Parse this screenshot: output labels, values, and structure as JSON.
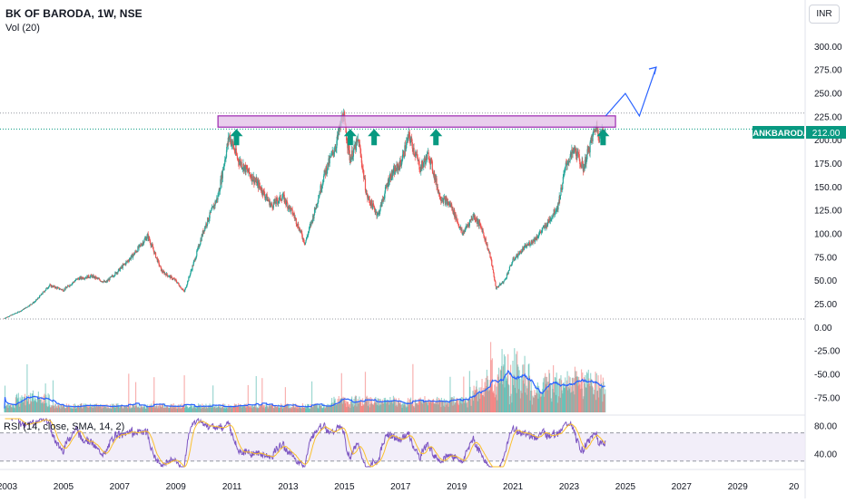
{
  "header": {
    "title": "BK OF BARODA, 1W, NSE",
    "volume_label": "Vol (20)",
    "currency": "INR"
  },
  "last_price": {
    "symbol": "BANKBARODA",
    "value": "212.00",
    "color": "#089981"
  },
  "rsi": {
    "label": "RSI (14, close, SMA, 14, 2)",
    "ticks": [
      "80.00",
      "40.00"
    ]
  },
  "colors": {
    "up": "#26a69a",
    "down": "#ef5350",
    "resistance_fill": "#e1bee7",
    "resistance_border": "#9c27b0",
    "arrow": "#089981",
    "projection": "#2962ff",
    "volume_ma": "#2962ff",
    "rsi_line": "#7e57c2",
    "rsi_ma": "#fbc02d",
    "rsi_band": "#ede7f6"
  },
  "chart_data": {
    "type": "line",
    "title": "BK OF BARODA, 1W, NSE",
    "x_ticks": [
      "2003",
      "2005",
      "2007",
      "2009",
      "2011",
      "2013",
      "2015",
      "2017",
      "2019",
      "2021",
      "2023",
      "2025",
      "2027",
      "2029",
      "20"
    ],
    "price_axis_ticks": [
      "300.00",
      "275.00",
      "250.00",
      "225.00",
      "200.00",
      "175.00",
      "150.00",
      "125.00",
      "100.00",
      "75.00",
      "50.00",
      "25.00",
      "0.00",
      "-25.00",
      "-50.00",
      "-75.00"
    ],
    "price_ylim": [
      -80,
      312
    ],
    "series": [
      {
        "name": "BANKBARODA",
        "x": [
          2002.9,
          2003.5,
          2004.0,
          2004.5,
          2005.0,
          2005.5,
          2006.0,
          2006.5,
          2007.0,
          2007.5,
          2008.0,
          2008.5,
          2009.0,
          2009.3,
          2009.7,
          2010.0,
          2010.5,
          2010.9,
          2011.2,
          2011.6,
          2012.0,
          2012.4,
          2012.8,
          2013.2,
          2013.6,
          2013.9,
          2014.3,
          2014.7,
          2014.95,
          2015.2,
          2015.5,
          2015.8,
          2016.2,
          2016.6,
          2017.0,
          2017.3,
          2017.7,
          2018.0,
          2018.4,
          2018.8,
          2019.2,
          2019.6,
          2019.9,
          2020.2,
          2020.4,
          2020.7,
          2021.0,
          2021.4,
          2021.8,
          2022.2,
          2022.6,
          2022.9,
          2023.2,
          2023.5,
          2023.8,
          2023.95,
          2024.1,
          2024.3
        ],
        "y": [
          10,
          18,
          28,
          45,
          40,
          52,
          55,
          48,
          62,
          78,
          98,
          60,
          50,
          38,
          75,
          105,
          140,
          205,
          180,
          165,
          150,
          130,
          140,
          120,
          90,
          120,
          165,
          195,
          228,
          180,
          200,
          140,
          120,
          160,
          175,
          205,
          170,
          185,
          140,
          130,
          100,
          120,
          105,
          75,
          42,
          50,
          72,
          85,
          95,
          110,
          130,
          175,
          190,
          170,
          200,
          215,
          205,
          212
        ]
      }
    ],
    "annotations": {
      "resistance_zone": [
        214,
        226
      ],
      "resistance_touches": [
        2010.9,
        2014.95,
        2015.8,
        2018.0,
        2023.95
      ],
      "projection_path": {
        "x": [
          2024.3,
          2025.0,
          2025.5,
          2026.1
        ],
        "y": [
          226,
          250,
          226,
          278
        ]
      }
    },
    "rsi_ylim": [
      22,
      90
    ],
    "rsi_band": [
      30,
      70
    ],
    "grid": false
  }
}
